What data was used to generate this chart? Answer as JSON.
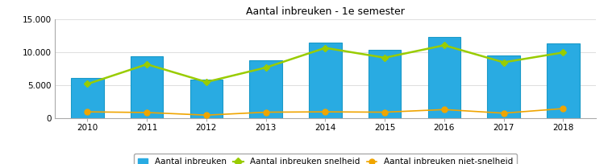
{
  "title": "Aantal inbreuken - 1e semester",
  "years": [
    2010,
    2011,
    2012,
    2013,
    2014,
    2015,
    2016,
    2017,
    2018
  ],
  "bar_values": [
    6100,
    9400,
    5900,
    8800,
    11500,
    10400,
    12400,
    9600,
    11400
  ],
  "line_snelheid": [
    5200,
    8200,
    5500,
    7700,
    10700,
    9200,
    11100,
    8500,
    10000
  ],
  "line_niet_snelheid": [
    950,
    850,
    450,
    900,
    950,
    900,
    1300,
    750,
    1450
  ],
  "bar_color": "#29ABE2",
  "bar_edge_color": "#1899C8",
  "line_snelheid_color": "#99CC00",
  "line_niet_snelheid_color": "#F0A500",
  "marker_snelheid": "D",
  "marker_niet_snelheid": "o",
  "ylim": [
    0,
    15000
  ],
  "yticks": [
    0,
    5000,
    10000,
    15000
  ],
  "ytick_labels": [
    "0",
    "5.000",
    "10.000",
    "15.000"
  ],
  "background_color": "#FFFFFF",
  "plot_bg_color": "#FFFFFF",
  "grid_color": "#DDDDDD",
  "legend_labels": [
    "Aantal inbreuken",
    "Aantal inbreuken snelheid",
    "Aantal inbreuken niet-snelheid"
  ],
  "bar_width": 0.55
}
